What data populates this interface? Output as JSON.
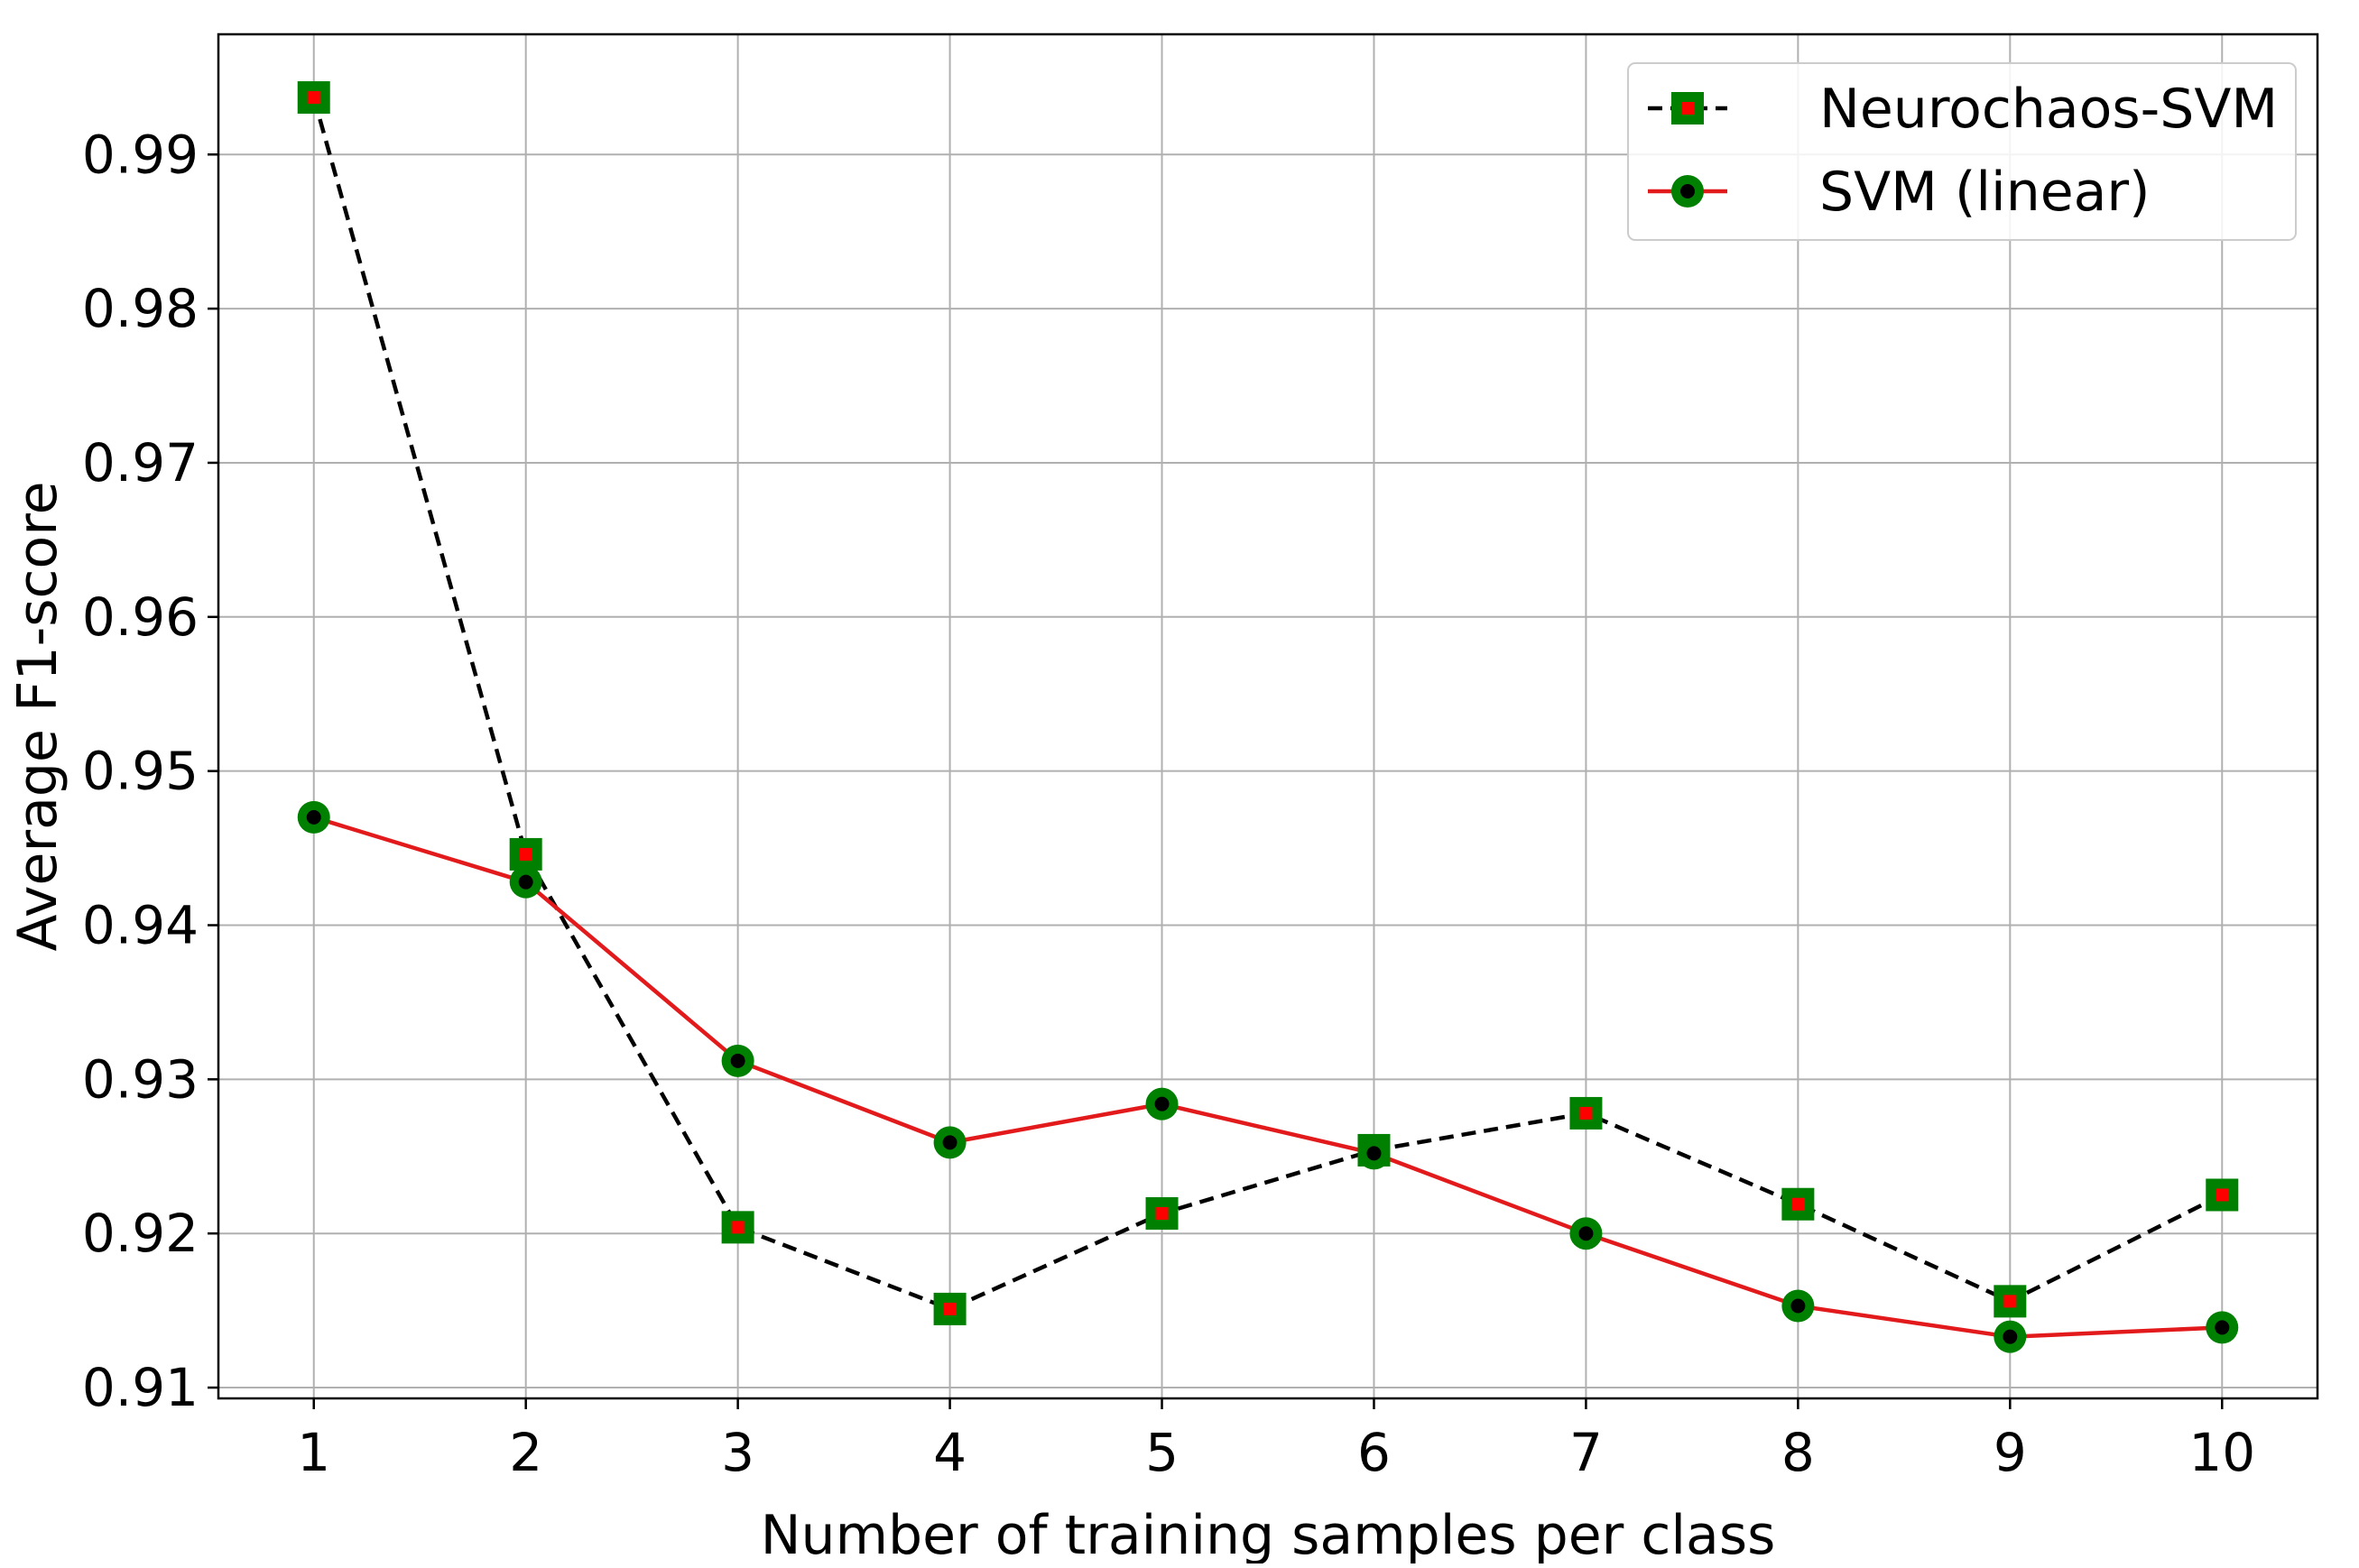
{
  "chart_data": {
    "type": "line",
    "title": "",
    "xlabel": "Number of training samples per class",
    "ylabel": "Average F1-score",
    "x": [
      1,
      2,
      3,
      4,
      5,
      6,
      7,
      8,
      9,
      10
    ],
    "xlim": [
      0.55,
      10.45
    ],
    "ylim": [
      0.9093,
      0.9978
    ],
    "xticks": [
      1,
      2,
      3,
      4,
      5,
      6,
      7,
      8,
      9,
      10
    ],
    "yticks": [
      0.91,
      0.92,
      0.93,
      0.94,
      0.95,
      0.96,
      0.97,
      0.98,
      0.99
    ],
    "ytick_labels": [
      "0.91",
      "0.92",
      "0.93",
      "0.94",
      "0.95",
      "0.96",
      "0.97",
      "0.98",
      "0.99"
    ],
    "grid": true,
    "legend_position": "upper right",
    "series": [
      {
        "name": "Neurochaos-SVM",
        "values": [
          0.9937,
          0.9446,
          0.9204,
          0.9151,
          0.9213,
          0.9254,
          0.9278,
          0.9219,
          0.9156,
          0.9225
        ],
        "line_color": "#000000",
        "line_style": "dashed",
        "marker": "square",
        "marker_face": "#ff0000",
        "marker_edge": "#008000"
      },
      {
        "name": "SVM (linear)",
        "values": [
          0.947,
          0.9428,
          0.9312,
          0.9259,
          0.9284,
          0.9252,
          0.92,
          0.9153,
          0.9133,
          0.9139
        ],
        "line_color": "#e31a1c",
        "line_style": "solid",
        "marker": "circle",
        "marker_face": "#000000",
        "marker_edge": "#008000"
      }
    ]
  }
}
